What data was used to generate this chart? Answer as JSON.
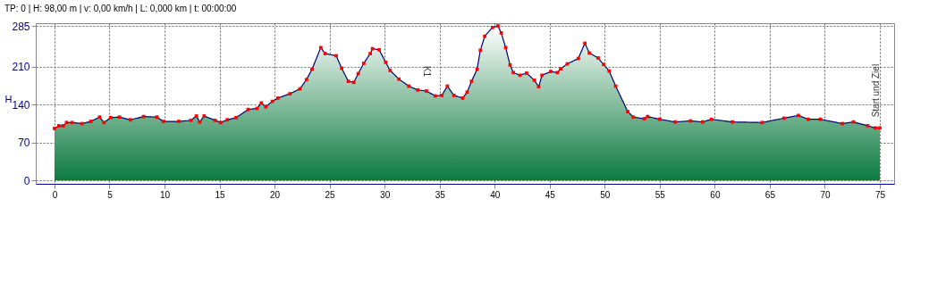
{
  "chart_data": {
    "type": "area",
    "title": "TP: 0 | H: 98,00 m | v: 0,00 km/h | L: 0,000 km | t: 00:00:00",
    "ylabel": "H",
    "x": [
      0,
      0.4,
      0.8,
      1.1,
      1.6,
      2.5,
      3.3,
      4.1,
      4.5,
      5.1,
      5.9,
      6.9,
      8.1,
      9.3,
      9.9,
      11.3,
      12.4,
      12.9,
      13.2,
      13.6,
      14.6,
      15.1,
      15.7,
      16.5,
      17.6,
      18.4,
      18.8,
      19.2,
      19.8,
      20.3,
      21.4,
      22.3,
      22.9,
      23.4,
      24.2,
      24.6,
      25.6,
      26.1,
      26.7,
      27.2,
      27.6,
      28.1,
      28.7,
      28.9,
      29.5,
      30.1,
      30.5,
      31.3,
      32.2,
      33.0,
      33.8,
      34.6,
      35.2,
      35.7,
      36.3,
      37.1,
      37.5,
      37.9,
      38.4,
      38.7,
      39.1,
      39.8,
      40.3,
      40.6,
      41.0,
      41.4,
      41.7,
      42.3,
      42.9,
      43.6,
      44.0,
      44.3,
      45.1,
      45.7,
      46.0,
      46.6,
      47.6,
      48.2,
      48.6,
      49.4,
      49.9,
      50.4,
      51.0,
      52.1,
      52.6,
      53.6,
      53.9,
      55.0,
      56.4,
      57.8,
      58.9,
      59.7,
      61.6,
      64.3,
      66.3,
      67.6,
      68.5,
      69.6,
      71.6,
      72.6,
      73.9,
      74.6,
      75.0
    ],
    "series": [
      {
        "color": "#0b7a3e",
        "values": [
          96,
          101,
          101,
          107,
          107,
          105,
          109,
          117,
          107,
          116,
          117,
          112,
          118,
          117,
          109,
          109,
          111,
          119,
          108,
          119,
          111,
          107,
          112,
          116,
          131,
          133,
          143,
          136,
          146,
          152,
          160,
          169,
          186,
          205,
          245,
          234,
          230,
          207,
          183,
          181,
          197,
          216,
          234,
          243,
          241,
          218,
          203,
          187,
          174,
          167,
          165,
          156,
          157,
          174,
          157,
          152,
          163,
          183,
          205,
          240,
          266,
          282,
          285,
          272,
          245,
          213,
          199,
          194,
          198,
          185,
          173,
          194,
          201,
          199,
          206,
          215,
          225,
          253,
          235,
          226,
          214,
          202,
          174,
          127,
          117,
          114,
          118,
          113,
          108,
          110,
          108,
          113,
          108,
          107,
          115,
          120,
          113,
          113,
          105,
          108,
          101,
          97,
          97
        ]
      }
    ],
    "xlim": [
      -1.7,
      76.3
    ],
    "ylim": [
      -6,
      290
    ],
    "xticks": [
      0,
      5,
      10,
      15,
      20,
      25,
      30,
      35,
      40,
      45,
      50,
      55,
      60,
      65,
      70,
      75
    ],
    "yticks": [
      0,
      70,
      140,
      210,
      285
    ],
    "grid": true,
    "marker": "square",
    "line_style": "solid",
    "annotations": [
      {
        "text": "K1",
        "x": 33.8,
        "y": 165
      },
      {
        "text": "Start und Ziel",
        "x": 75,
        "y": 97
      }
    ]
  }
}
